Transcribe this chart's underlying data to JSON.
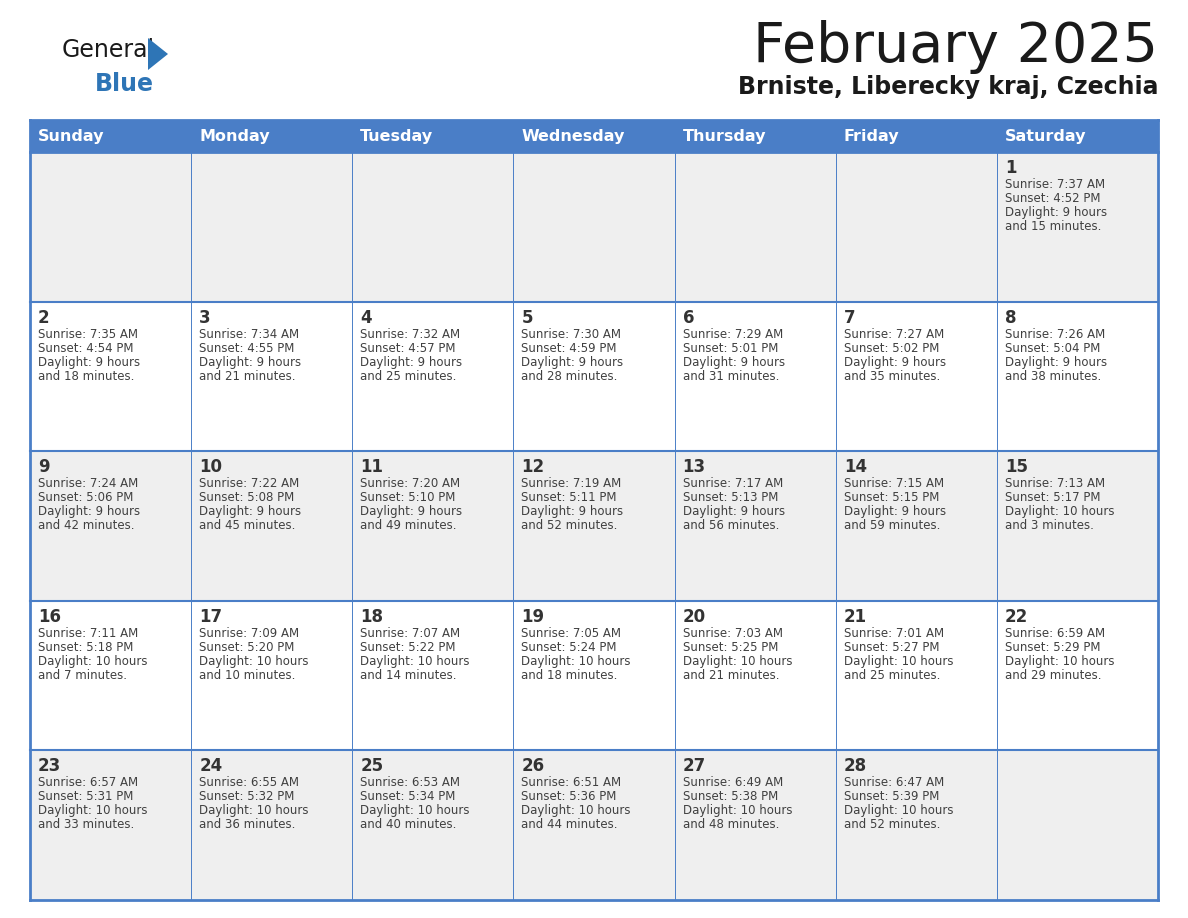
{
  "title": "February 2025",
  "subtitle": "Brniste, Liberecky kraj, Czechia",
  "header_bg_color": "#4a7ec7",
  "header_text_color": "#FFFFFF",
  "cell_bg_white": "#FFFFFF",
  "cell_bg_gray": "#EFEFEF",
  "border_color_dark": "#4a7ec7",
  "border_color_light": "#a0a0a0",
  "text_color": "#404040",
  "day_number_color": "#333333",
  "days_of_week": [
    "Sunday",
    "Monday",
    "Tuesday",
    "Wednesday",
    "Thursday",
    "Friday",
    "Saturday"
  ],
  "row_bg": [
    "gray",
    "gray",
    "white",
    "gray",
    "white",
    "gray",
    "white"
  ],
  "calendar_data": [
    [
      {
        "day": "",
        "info": ""
      },
      {
        "day": "",
        "info": ""
      },
      {
        "day": "",
        "info": ""
      },
      {
        "day": "",
        "info": ""
      },
      {
        "day": "",
        "info": ""
      },
      {
        "day": "",
        "info": ""
      },
      {
        "day": "1",
        "info": "Sunrise: 7:37 AM\nSunset: 4:52 PM\nDaylight: 9 hours\nand 15 minutes."
      }
    ],
    [
      {
        "day": "2",
        "info": "Sunrise: 7:35 AM\nSunset: 4:54 PM\nDaylight: 9 hours\nand 18 minutes."
      },
      {
        "day": "3",
        "info": "Sunrise: 7:34 AM\nSunset: 4:55 PM\nDaylight: 9 hours\nand 21 minutes."
      },
      {
        "day": "4",
        "info": "Sunrise: 7:32 AM\nSunset: 4:57 PM\nDaylight: 9 hours\nand 25 minutes."
      },
      {
        "day": "5",
        "info": "Sunrise: 7:30 AM\nSunset: 4:59 PM\nDaylight: 9 hours\nand 28 minutes."
      },
      {
        "day": "6",
        "info": "Sunrise: 7:29 AM\nSunset: 5:01 PM\nDaylight: 9 hours\nand 31 minutes."
      },
      {
        "day": "7",
        "info": "Sunrise: 7:27 AM\nSunset: 5:02 PM\nDaylight: 9 hours\nand 35 minutes."
      },
      {
        "day": "8",
        "info": "Sunrise: 7:26 AM\nSunset: 5:04 PM\nDaylight: 9 hours\nand 38 minutes."
      }
    ],
    [
      {
        "day": "9",
        "info": "Sunrise: 7:24 AM\nSunset: 5:06 PM\nDaylight: 9 hours\nand 42 minutes."
      },
      {
        "day": "10",
        "info": "Sunrise: 7:22 AM\nSunset: 5:08 PM\nDaylight: 9 hours\nand 45 minutes."
      },
      {
        "day": "11",
        "info": "Sunrise: 7:20 AM\nSunset: 5:10 PM\nDaylight: 9 hours\nand 49 minutes."
      },
      {
        "day": "12",
        "info": "Sunrise: 7:19 AM\nSunset: 5:11 PM\nDaylight: 9 hours\nand 52 minutes."
      },
      {
        "day": "13",
        "info": "Sunrise: 7:17 AM\nSunset: 5:13 PM\nDaylight: 9 hours\nand 56 minutes."
      },
      {
        "day": "14",
        "info": "Sunrise: 7:15 AM\nSunset: 5:15 PM\nDaylight: 9 hours\nand 59 minutes."
      },
      {
        "day": "15",
        "info": "Sunrise: 7:13 AM\nSunset: 5:17 PM\nDaylight: 10 hours\nand 3 minutes."
      }
    ],
    [
      {
        "day": "16",
        "info": "Sunrise: 7:11 AM\nSunset: 5:18 PM\nDaylight: 10 hours\nand 7 minutes."
      },
      {
        "day": "17",
        "info": "Sunrise: 7:09 AM\nSunset: 5:20 PM\nDaylight: 10 hours\nand 10 minutes."
      },
      {
        "day": "18",
        "info": "Sunrise: 7:07 AM\nSunset: 5:22 PM\nDaylight: 10 hours\nand 14 minutes."
      },
      {
        "day": "19",
        "info": "Sunrise: 7:05 AM\nSunset: 5:24 PM\nDaylight: 10 hours\nand 18 minutes."
      },
      {
        "day": "20",
        "info": "Sunrise: 7:03 AM\nSunset: 5:25 PM\nDaylight: 10 hours\nand 21 minutes."
      },
      {
        "day": "21",
        "info": "Sunrise: 7:01 AM\nSunset: 5:27 PM\nDaylight: 10 hours\nand 25 minutes."
      },
      {
        "day": "22",
        "info": "Sunrise: 6:59 AM\nSunset: 5:29 PM\nDaylight: 10 hours\nand 29 minutes."
      }
    ],
    [
      {
        "day": "23",
        "info": "Sunrise: 6:57 AM\nSunset: 5:31 PM\nDaylight: 10 hours\nand 33 minutes."
      },
      {
        "day": "24",
        "info": "Sunrise: 6:55 AM\nSunset: 5:32 PM\nDaylight: 10 hours\nand 36 minutes."
      },
      {
        "day": "25",
        "info": "Sunrise: 6:53 AM\nSunset: 5:34 PM\nDaylight: 10 hours\nand 40 minutes."
      },
      {
        "day": "26",
        "info": "Sunrise: 6:51 AM\nSunset: 5:36 PM\nDaylight: 10 hours\nand 44 minutes."
      },
      {
        "day": "27",
        "info": "Sunrise: 6:49 AM\nSunset: 5:38 PM\nDaylight: 10 hours\nand 48 minutes."
      },
      {
        "day": "28",
        "info": "Sunrise: 6:47 AM\nSunset: 5:39 PM\nDaylight: 10 hours\nand 52 minutes."
      },
      {
        "day": "",
        "info": ""
      }
    ]
  ]
}
